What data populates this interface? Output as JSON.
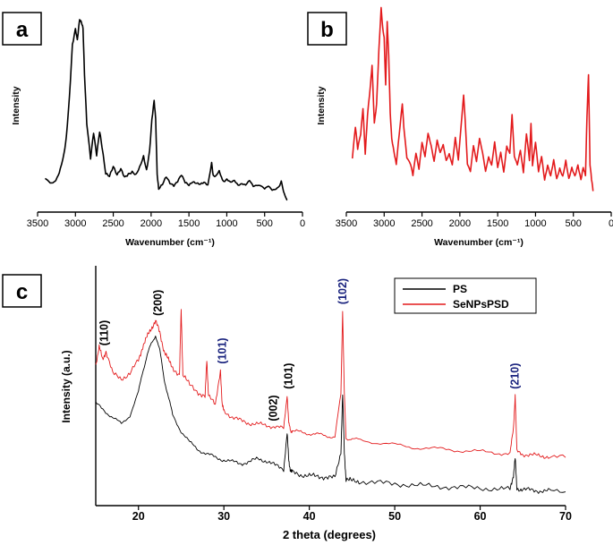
{
  "chart_data": [
    {
      "id": "a",
      "type": "line",
      "panel_label": "a",
      "title": "",
      "xlabel": "Wavenumber (cm⁻¹)",
      "ylabel": "Intensity",
      "xlim": [
        3500,
        0
      ],
      "ylim": [
        0,
        100
      ],
      "xticks": [
        3500,
        3000,
        2500,
        2000,
        1500,
        1000,
        500,
        0
      ],
      "line_color": "#000000",
      "series": [
        {
          "name": "spectrum",
          "x": [
            3400,
            3300,
            3240,
            3200,
            3150,
            3120,
            3080,
            3040,
            3000,
            2975,
            2945,
            2920,
            2900,
            2880,
            2850,
            2800,
            2760,
            2720,
            2680,
            2650,
            2600,
            2550,
            2500,
            2450,
            2400,
            2350,
            2300,
            2250,
            2200,
            2150,
            2100,
            2060,
            2020,
            1990,
            1960,
            1940,
            1920,
            1900,
            1850,
            1800,
            1750,
            1700,
            1650,
            1600,
            1550,
            1500,
            1450,
            1400,
            1350,
            1300,
            1250,
            1200,
            1180,
            1150,
            1100,
            1070,
            1040,
            1000,
            950,
            900,
            850,
            800,
            750,
            700,
            650,
            600,
            550,
            500,
            450,
            400,
            350,
            300,
            280,
            250,
            220,
            200
          ],
          "y": [
            15,
            13,
            16,
            20,
            28,
            37,
            58,
            86,
            94,
            88,
            99,
            98,
            95,
            70,
            44,
            26,
            40,
            28,
            40,
            32,
            18,
            17,
            22,
            17,
            20,
            16,
            18,
            19,
            17,
            21,
            27,
            20,
            30,
            46,
            56,
            47,
            18,
            10,
            12,
            16,
            13,
            12,
            14,
            17,
            13,
            12,
            14,
            13,
            12,
            13,
            12,
            24,
            17,
            16,
            19,
            16,
            14,
            15,
            13,
            14,
            12,
            13,
            12,
            14,
            11,
            12,
            12,
            10,
            11,
            9,
            10,
            12,
            14,
            8,
            5,
            4
          ]
        }
      ]
    },
    {
      "id": "b",
      "type": "line",
      "panel_label": "b",
      "title": "",
      "xlabel": "Wavenumber (cm⁻¹)",
      "ylabel": "Intensity",
      "xlim": [
        3500,
        0
      ],
      "ylim": [
        0,
        100
      ],
      "xticks": [
        3500,
        3000,
        2500,
        2000,
        1500,
        1000,
        500,
        0
      ],
      "line_color": "#e31a1c",
      "series": [
        {
          "name": "spectrum",
          "x": [
            3420,
            3380,
            3350,
            3310,
            3280,
            3250,
            3220,
            3180,
            3160,
            3130,
            3100,
            3070,
            3040,
            3020,
            3000,
            2980,
            2960,
            2940,
            2920,
            2900,
            2870,
            2840,
            2800,
            2760,
            2740,
            2700,
            2650,
            2620,
            2580,
            2540,
            2500,
            2460,
            2420,
            2380,
            2340,
            2300,
            2260,
            2220,
            2180,
            2140,
            2100,
            2060,
            2020,
            1980,
            1950,
            1930,
            1900,
            1860,
            1820,
            1780,
            1740,
            1700,
            1660,
            1620,
            1580,
            1540,
            1500,
            1460,
            1420,
            1380,
            1340,
            1310,
            1280,
            1240,
            1200,
            1160,
            1120,
            1080,
            1060,
            1040,
            1000,
            960,
            920,
            880,
            840,
            800,
            760,
            720,
            680,
            640,
            600,
            560,
            520,
            480,
            440,
            400,
            370,
            340,
            320,
            300,
            280,
            260,
            240
          ],
          "y": [
            22,
            38,
            26,
            34,
            48,
            24,
            44,
            60,
            70,
            40,
            50,
            78,
            100,
            90,
            85,
            60,
            93,
            75,
            45,
            32,
            25,
            18,
            34,
            50,
            38,
            22,
            18,
            12,
            24,
            16,
            30,
            22,
            34,
            28,
            20,
            31,
            24,
            28,
            20,
            24,
            18,
            32,
            20,
            40,
            55,
            42,
            18,
            14,
            28,
            20,
            32,
            24,
            14,
            22,
            18,
            30,
            16,
            24,
            14,
            28,
            24,
            44,
            22,
            18,
            26,
            14,
            34,
            20,
            40,
            18,
            30,
            14,
            22,
            10,
            18,
            12,
            20,
            10,
            16,
            12,
            20,
            10,
            16,
            12,
            18,
            10,
            16,
            12,
            44,
            66,
            18,
            10,
            4
          ]
        }
      ]
    },
    {
      "id": "c",
      "type": "line",
      "panel_label": "c",
      "title": "",
      "xlabel": "2 theta (degrees)",
      "ylabel": "Intensity (a.u.)",
      "xlim": [
        15,
        70
      ],
      "ylim": [
        0,
        100
      ],
      "xticks": [
        20,
        30,
        40,
        50,
        60,
        70
      ],
      "legend_position": "top-right",
      "series": [
        {
          "name": "PS",
          "color": "#000000",
          "x": [
            15,
            16,
            17,
            18,
            19,
            20,
            20.5,
            21,
            21.5,
            22,
            22.5,
            23,
            23.5,
            24,
            25,
            26,
            27,
            28,
            29,
            30,
            31,
            32,
            33,
            34,
            35,
            36,
            37,
            37.4,
            37.6,
            37.8,
            38,
            39,
            40,
            41,
            42,
            43,
            43.7,
            43.9,
            44.1,
            44.3,
            45,
            46,
            48,
            50,
            52,
            54,
            56,
            58,
            60,
            62,
            63.5,
            63.9,
            64.1,
            64.3,
            65,
            66,
            67,
            68,
            70
          ],
          "y": [
            41,
            38,
            35,
            32,
            36,
            46,
            55,
            62,
            67,
            71,
            64,
            52,
            44,
            36,
            29,
            24,
            21,
            19,
            17.5,
            16.5,
            15.5,
            15,
            15.5,
            17,
            16,
            14,
            12.5,
            28,
            16,
            12,
            11,
            10,
            9.5,
            9.2,
            9,
            8.5,
            20,
            45,
            20,
            8,
            7.2,
            7,
            6.5,
            6,
            5.5,
            5,
            4.7,
            4.4,
            4.1,
            3.8,
            3.6,
            10,
            17,
            4,
            3.5,
            3.2,
            3,
            2.8,
            2.5
          ]
        },
        {
          "name": "SeNPsPSD",
          "color": "#e31a1c",
          "x": [
            15,
            15.4,
            15.8,
            16.2,
            17,
            18,
            19,
            20,
            20.5,
            21,
            21.5,
            22,
            22.5,
            23,
            23.5,
            24,
            24.8,
            25,
            25.2,
            26,
            27,
            27.8,
            28,
            28.2,
            29,
            29.6,
            29.8,
            30,
            31,
            32,
            33,
            34,
            35,
            36,
            37,
            37.4,
            37.6,
            37.8,
            38,
            39,
            40,
            41,
            42,
            43,
            43.7,
            43.9,
            44.1,
            44.3,
            45,
            46,
            48,
            50,
            52,
            54,
            56,
            58,
            60,
            62,
            63.5,
            63.9,
            64.1,
            64.3,
            65,
            66,
            67,
            68,
            70
          ],
          "y": [
            58,
            66,
            60,
            64,
            54,
            52,
            54,
            60,
            66,
            70,
            74,
            77,
            72,
            64,
            60,
            57,
            53,
            82,
            54,
            49,
            46,
            44,
            60,
            45,
            40,
            56,
            40,
            38,
            35,
            33.5,
            32.5,
            32,
            31.5,
            31,
            30,
            45,
            32,
            29.5,
            29,
            28.5,
            28,
            27.5,
            27,
            26.5,
            45,
            82,
            45,
            26,
            25.5,
            25,
            24,
            23,
            22,
            21.5,
            21,
            20.5,
            20,
            19.5,
            19.2,
            30,
            45,
            20,
            19,
            18.5,
            18.2,
            18,
            17.5
          ]
        }
      ],
      "annotations": [
        {
          "label": "(110)",
          "x": 16,
          "color": "black"
        },
        {
          "label": "(200)",
          "x": 22.3,
          "color": "black"
        },
        {
          "label": "(101)",
          "x": 29.8,
          "color": "blue"
        },
        {
          "label": "(002)",
          "x": 35.8,
          "color": "black"
        },
        {
          "label": "(101)",
          "x": 37.6,
          "color": "black"
        },
        {
          "label": "(102)",
          "x": 43.9,
          "color": "blue"
        },
        {
          "label": "(210)",
          "x": 64.1,
          "color": "blue"
        }
      ]
    }
  ]
}
